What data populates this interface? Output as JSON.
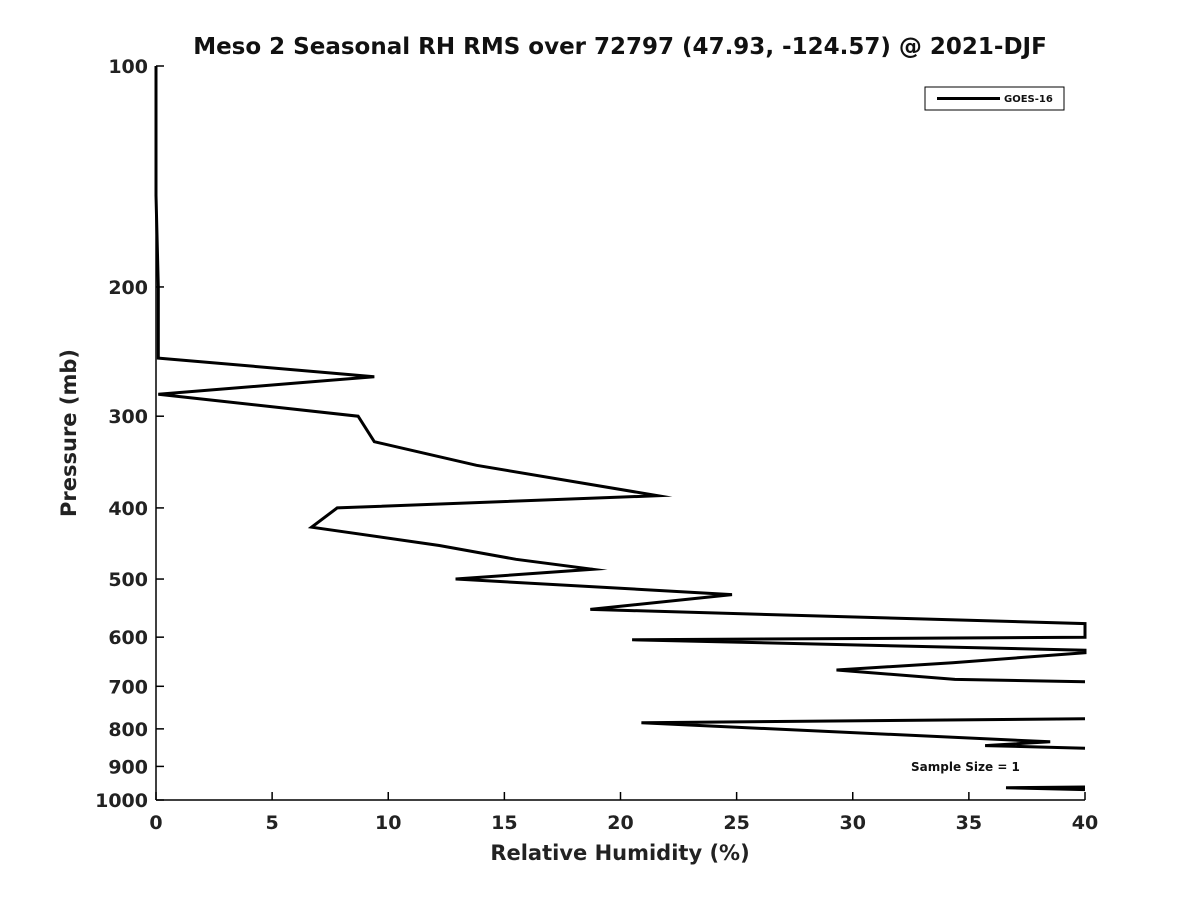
{
  "chart_data": {
    "type": "line",
    "title": "Meso 2 Seasonal RH RMS over 72797 (47.93, -124.57) @ 2021-DJF",
    "xlabel": "Relative Humidity (%)",
    "ylabel": "Pressure (mb)",
    "xlim": [
      0,
      40
    ],
    "ylim": [
      100,
      1000
    ],
    "y_scale": "log",
    "y_reversed": true,
    "x_ticks": [
      0,
      5,
      10,
      15,
      20,
      25,
      30,
      35,
      40
    ],
    "y_ticks": [
      100,
      200,
      300,
      400,
      500,
      600,
      700,
      800,
      900,
      1000
    ],
    "grid": false,
    "legend_position": "top-right",
    "series": [
      {
        "name": "GOES-16",
        "color": "#000000",
        "segments": [
          [
            {
              "x": 0,
              "y": 100
            },
            {
              "x": 0,
              "y": 150
            },
            {
              "x": 0.1,
              "y": 200
            },
            {
              "x": 0.1,
              "y": 250
            },
            {
              "x": 9.4,
              "y": 265
            },
            {
              "x": 0.1,
              "y": 280
            },
            {
              "x": 8.7,
              "y": 300
            },
            {
              "x": 9.4,
              "y": 325
            },
            {
              "x": 13.8,
              "y": 350
            },
            {
              "x": 21.6,
              "y": 385
            },
            {
              "x": 7.8,
              "y": 400
            },
            {
              "x": 6.7,
              "y": 425
            },
            {
              "x": 12.2,
              "y": 450
            },
            {
              "x": 15.5,
              "y": 470
            },
            {
              "x": 18.8,
              "y": 485
            },
            {
              "x": 12.9,
              "y": 500
            },
            {
              "x": 24.8,
              "y": 525
            },
            {
              "x": 18.7,
              "y": 550
            },
            {
              "x": 40,
              "y": 575
            },
            {
              "x": 40,
              "y": 600
            },
            {
              "x": 20.5,
              "y": 605
            },
            {
              "x": 40,
              "y": 625
            },
            {
              "x": 40,
              "y": 630
            },
            {
              "x": 34.3,
              "y": 650
            },
            {
              "x": 29.3,
              "y": 665
            },
            {
              "x": 34.4,
              "y": 685
            },
            {
              "x": 40,
              "y": 690
            }
          ],
          [
            {
              "x": 40,
              "y": 775
            },
            {
              "x": 20.9,
              "y": 785
            },
            {
              "x": 38.5,
              "y": 833
            },
            {
              "x": 35.7,
              "y": 843
            },
            {
              "x": 40,
              "y": 850
            }
          ],
          [
            {
              "x": 40,
              "y": 960
            },
            {
              "x": 36.6,
              "y": 962
            },
            {
              "x": 40,
              "y": 968
            }
          ]
        ]
      }
    ],
    "annotations": [
      {
        "text": "Sample Size = 1",
        "x": 35.0,
        "y": 900
      }
    ]
  }
}
